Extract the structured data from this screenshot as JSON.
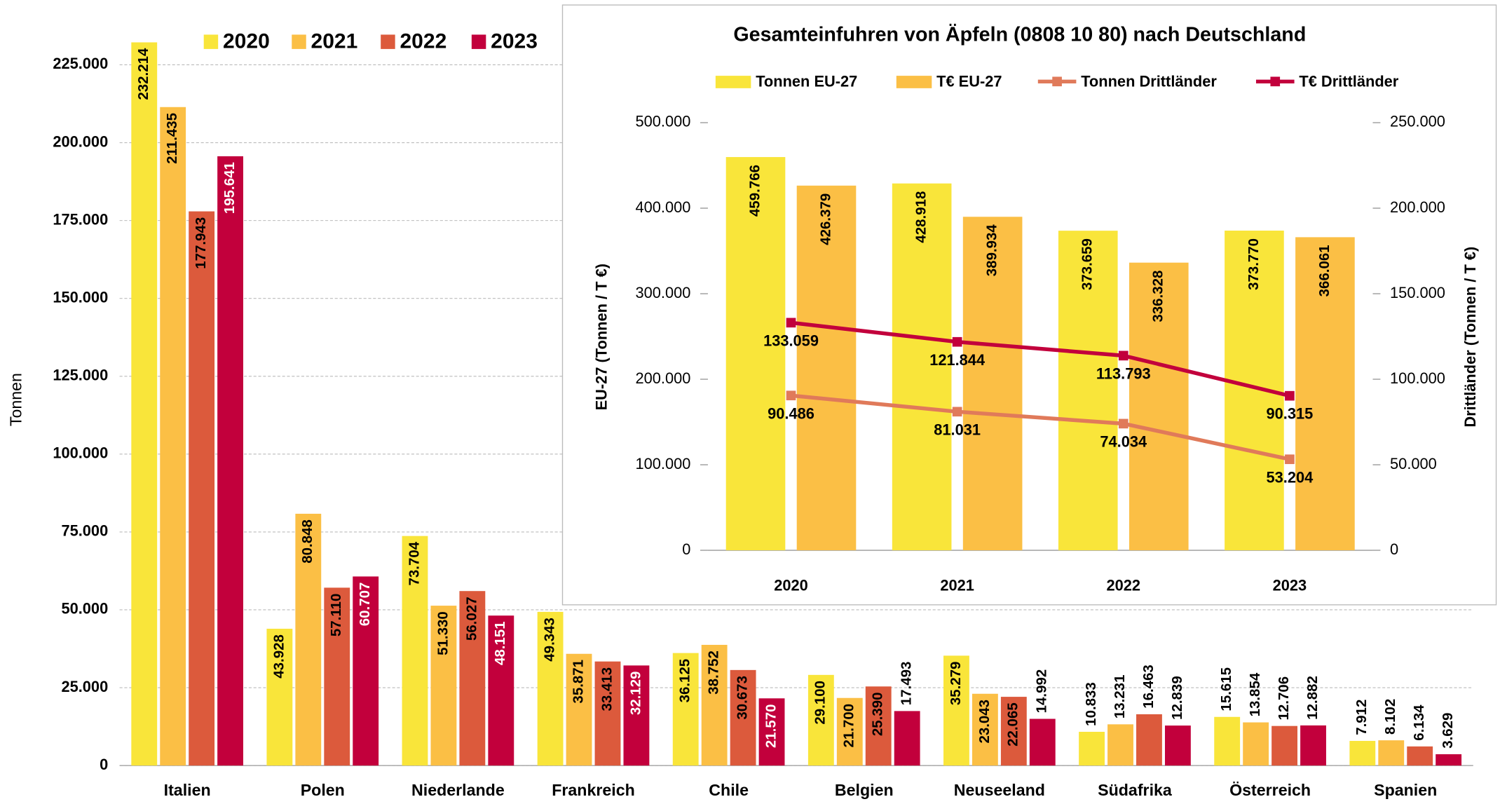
{
  "chart_data": [
    {
      "type": "bar",
      "axis_label": "Tonnen",
      "categories": [
        "Italien",
        "Polen",
        "Niederlande",
        "Frankreich",
        "Chile",
        "Belgien",
        "Neuseeland",
        "Südafrika",
        "Österreich",
        "Spanien"
      ],
      "series": [
        {
          "name": "2020",
          "color": "#f9e53a",
          "label_color": "#000000",
          "values": [
            232214,
            43928,
            73704,
            49343,
            36125,
            29100,
            35279,
            10833,
            15615,
            7912
          ],
          "value_labels": [
            "232.214",
            "43.928",
            "73.704",
            "49.343",
            "36.125",
            "29.100",
            "35.279",
            "10.833",
            "15.615",
            "7.912"
          ]
        },
        {
          "name": "2021",
          "color": "#fbbf45",
          "label_color": "#000000",
          "values": [
            211435,
            80848,
            51330,
            35871,
            38752,
            21700,
            23043,
            13231,
            13854,
            8102
          ],
          "value_labels": [
            "211.435",
            "80.848",
            "51.330",
            "35.871",
            "38.752",
            "21.700",
            "23.043",
            "13.231",
            "13.854",
            "8.102"
          ]
        },
        {
          "name": "2022",
          "color": "#dc5a3c",
          "label_color": "#000000",
          "values": [
            177943,
            57110,
            56027,
            33413,
            30673,
            25390,
            22065,
            16463,
            12706,
            6134
          ],
          "value_labels": [
            "177.943",
            "57.110",
            "56.027",
            "33.413",
            "30.673",
            "25.390",
            "22.065",
            "16.463",
            "12.706",
            "6.134"
          ]
        },
        {
          "name": "2023",
          "color": "#c2003c",
          "label_color": "#ffffff",
          "values": [
            195641,
            60707,
            48151,
            32129,
            21570,
            17493,
            14992,
            12839,
            12882,
            3629
          ],
          "value_labels": [
            "195.641",
            "60.707",
            "48.151",
            "32.129",
            "21.570",
            "17.493",
            "14.992",
            "12.839",
            "12.882",
            "3.629"
          ]
        }
      ],
      "ylim": [
        0,
        235000
      ],
      "yticks": [
        0,
        {
          "value": 25000,
          "label": "25.000"
        },
        {
          "value": 50000,
          "label": "50.000"
        },
        {
          "value": 75000,
          "label": "75.000"
        },
        {
          "value": 100000,
          "label": "100.000"
        },
        {
          "value": 125000,
          "label": "125.000"
        },
        {
          "value": 150000,
          "label": "150.000"
        },
        {
          "value": 175000,
          "label": "175.000"
        },
        {
          "value": 200000,
          "label": "200.000"
        },
        {
          "value": 225000,
          "label": "225.000"
        }
      ],
      "grid": true,
      "legend": "top"
    },
    {
      "type": "combo",
      "title": "Gesamteinfuhren von Äpfeln (0808 10 80) nach Deutschland",
      "y_label": "EU-27 (Tonnen / T €)",
      "y2_label": "Drittländer (Tonnen / T €)",
      "categories": [
        "2020",
        "2021",
        "2022",
        "2023"
      ],
      "series": [
        {
          "name": "Tonnen EU-27",
          "type": "bar",
          "color": "#f9e53a",
          "values": [
            459766,
            428918,
            373659,
            373770
          ],
          "value_labels": [
            "459.766",
            "428.918",
            "373.659",
            "373.770"
          ]
        },
        {
          "name": "T€ EU-27",
          "type": "bar",
          "color": "#fbbf45",
          "values": [
            426379,
            389934,
            336328,
            366061
          ],
          "value_labels": [
            "426.379",
            "389.934",
            "336.328",
            "366.061"
          ]
        },
        {
          "name": "Tonnen Drittländer",
          "type": "line",
          "axis": "y2",
          "color": "#e07a5a",
          "values": [
            90486,
            81031,
            74034,
            53204
          ],
          "value_labels": [
            "90.486",
            "81.031",
            "74.034",
            "53.204"
          ]
        },
        {
          "name": "T€ Drittländer",
          "type": "line",
          "axis": "y2",
          "color": "#c2003c",
          "values": [
            133059,
            121844,
            113793,
            90315
          ],
          "value_labels": [
            "133.059",
            "121.844",
            "113.793",
            "90.315"
          ]
        }
      ],
      "ylim": [
        0,
        500000
      ],
      "yticks": [
        0,
        {
          "value": 100000,
          "label": "100.000"
        },
        {
          "value": 200000,
          "label": "200.000"
        },
        {
          "value": 300000,
          "label": "300.000"
        },
        {
          "value": 400000,
          "label": "400.000"
        },
        {
          "value": 500000,
          "label": "500.000"
        }
      ],
      "y2lim": [
        0,
        250000
      ],
      "y2ticks": [
        0,
        {
          "value": 50000,
          "label": "50.000"
        },
        {
          "value": 100000,
          "label": "100.000"
        },
        {
          "value": 150000,
          "label": "150.000"
        },
        {
          "value": 200000,
          "label": "200.000"
        },
        {
          "value": 250000,
          "label": "250.000"
        }
      ],
      "grid": false,
      "legend": "top"
    }
  ]
}
